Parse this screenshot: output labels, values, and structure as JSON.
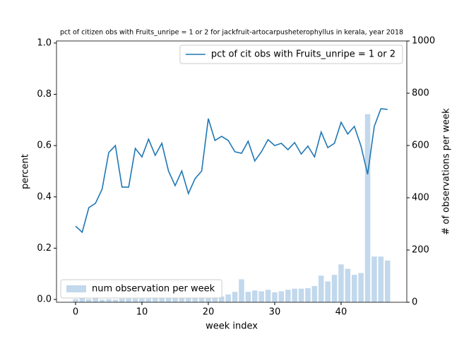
{
  "chart_data": {
    "type": "bar",
    "title": "pct of citizen obs with Fruits_unripe = 1 or 2 for jackfruit-artocarpusheterophyllus in kerala, year 2018",
    "x_label": "week index",
    "y_label": "percent",
    "y2_label": "# of observations per week",
    "x": [
      0,
      1,
      2,
      3,
      4,
      5,
      6,
      7,
      8,
      9,
      10,
      11,
      12,
      13,
      14,
      15,
      16,
      17,
      18,
      19,
      20,
      21,
      22,
      23,
      24,
      25,
      26,
      27,
      28,
      29,
      30,
      31,
      32,
      33,
      34,
      35,
      36,
      37,
      38,
      39,
      40,
      41,
      42,
      43,
      44,
      45,
      46,
      47
    ],
    "series": [
      {
        "name": "num observation per week",
        "type": "bar",
        "axis": "y2",
        "color": "#c2d8ec",
        "legend": "lower left",
        "values": [
          12,
          16,
          12,
          16,
          10,
          12,
          10,
          14,
          14,
          14,
          14,
          14,
          16,
          16,
          16,
          16,
          16,
          16,
          16,
          18,
          18,
          20,
          22,
          30,
          40,
          88,
          40,
          45,
          42,
          48,
          38,
          42,
          48,
          52,
          52,
          54,
          62,
          102,
          80,
          105,
          145,
          128,
          105,
          112,
          720,
          175,
          175,
          160
        ]
      },
      {
        "name": "pct of cit obs with Fruits_unripe = 1 or 2",
        "type": "line",
        "color": "#1f77b4",
        "legend": "upper right",
        "values": [
          0.286,
          0.262,
          0.358,
          0.375,
          0.43,
          0.573,
          0.6,
          0.438,
          0.438,
          0.589,
          0.556,
          0.625,
          0.562,
          0.609,
          0.501,
          0.444,
          0.501,
          0.413,
          0.471,
          0.501,
          0.705,
          0.62,
          0.636,
          0.62,
          0.576,
          0.57,
          0.617,
          0.54,
          0.576,
          0.623,
          0.6,
          0.609,
          0.584,
          0.612,
          0.567,
          0.598,
          0.556,
          0.653,
          0.592,
          0.609,
          0.691,
          0.645,
          0.675,
          0.598,
          0.488,
          0.675,
          0.744,
          0.741
        ]
      }
    ],
    "xlim": [
      -2.87,
      49.9
    ],
    "xticks": [
      0,
      10,
      20,
      30,
      40
    ],
    "ylim": [
      -0.011,
      1.008
    ],
    "yticks": [
      {
        "value": 0,
        "label": "0.0"
      },
      0.2,
      0.4,
      0.6,
      0.8,
      {
        "value": 1,
        "label": "1.0"
      }
    ],
    "y2lim": [
      0,
      1000
    ],
    "y2ticks": [
      0,
      200,
      400,
      600,
      800,
      1000
    ]
  }
}
